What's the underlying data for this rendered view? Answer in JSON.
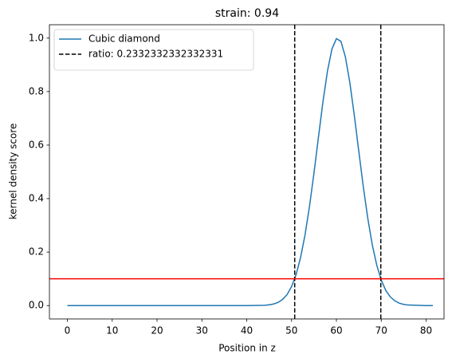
{
  "chart_data": {
    "type": "line",
    "title": "strain: 0.94",
    "xlabel": "Position in z",
    "ylabel": "kernel density score",
    "x": [
      0,
      10,
      20,
      30,
      40,
      44,
      45,
      46,
      47,
      48,
      49,
      50,
      51,
      52,
      53,
      54,
      55,
      56,
      57,
      58,
      59,
      60,
      61,
      62,
      63,
      64,
      65,
      66,
      67,
      68,
      69,
      70,
      71,
      72,
      73,
      74,
      75,
      76,
      80,
      81.5
    ],
    "series": [
      {
        "name": "Cubic diamond",
        "color": "#1f77b4",
        "values": [
          0,
          0,
          0,
          0,
          0,
          0.001,
          0.003,
          0.006,
          0.012,
          0.023,
          0.041,
          0.071,
          0.115,
          0.179,
          0.264,
          0.371,
          0.496,
          0.63,
          0.762,
          0.876,
          0.959,
          0.998,
          0.988,
          0.93,
          0.833,
          0.71,
          0.576,
          0.444,
          0.326,
          0.227,
          0.151,
          0.095,
          0.057,
          0.033,
          0.018,
          0.009,
          0.0045,
          0.002,
          0,
          0
        ]
      }
    ],
    "vlines": {
      "name": "ratio: 0.2332332332332331",
      "color": "#000000",
      "values": [
        50.7,
        69.9
      ]
    },
    "hline": {
      "value": 0.1,
      "color": "#ff0000"
    },
    "xlim": [
      -4,
      84
    ],
    "ylim": [
      -0.05,
      1.05
    ],
    "xticks": [
      0,
      10,
      20,
      30,
      40,
      50,
      60,
      70,
      80
    ],
    "yticks": [
      {
        "value": 0,
        "label": "0.0"
      },
      0.2,
      0.4,
      0.6,
      0.8,
      {
        "value": 1,
        "label": "1.0"
      }
    ],
    "legend": "upper left"
  }
}
